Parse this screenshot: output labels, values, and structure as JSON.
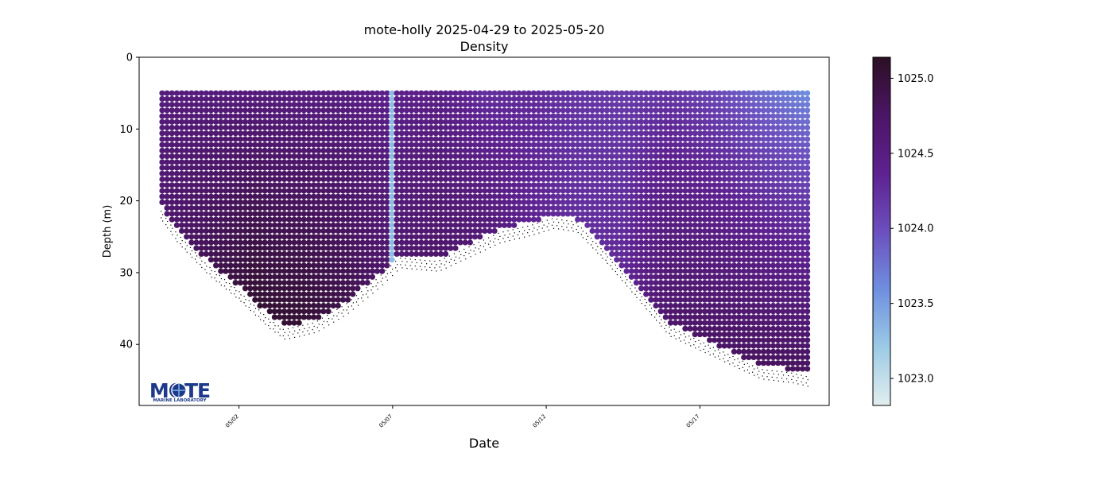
{
  "chart_data": {
    "type": "scatter",
    "title": "mote-holly 2025-04-29 to 2025-05-20",
    "subtitle": "Density",
    "xlabel": "Date",
    "ylabel": "Depth (m)",
    "x_ticks": [
      "05/02",
      "05/07",
      "05/12",
      "05/17"
    ],
    "x_tick_dates": [
      "2025-05-02",
      "2025-05-07",
      "2025-05-12",
      "2025-05-17"
    ],
    "xlim": [
      "2025-04-28T18:00",
      "2025-05-21T05:00"
    ],
    "y_ticks": [
      0,
      10,
      20,
      30,
      40
    ],
    "ylim": [
      48.5,
      0
    ],
    "y_inverted": true,
    "grid": false,
    "colorbar": {
      "ticks": [
        1023.0,
        1023.5,
        1024.0,
        1024.5,
        1025.0
      ],
      "tick_labels": [
        "1023.0",
        "1023.5",
        "1024.0",
        "1024.5",
        "1025.0"
      ],
      "range": [
        1022.82,
        1025.14
      ],
      "colors": [
        "#e2eeee",
        "#9ccbe6",
        "#6f8fdf",
        "#6c4fbe",
        "#5e2190",
        "#4b1565",
        "#2c0f24"
      ]
    },
    "surface_depth_m": 5,
    "bottom_profile": {
      "dates": [
        "2025-04-29T12:00",
        "2025-04-30T00:00",
        "2025-05-01T00:00",
        "2025-05-02T00:00",
        "2025-05-03T00:00",
        "2025-05-03T12:00",
        "2025-05-04T12:00",
        "2025-05-05T12:00",
        "2025-05-06T12:00",
        "2025-05-07T06:00",
        "2025-05-08T12:00",
        "2025-05-09T12:00",
        "2025-05-10T12:00",
        "2025-05-11T12:00",
        "2025-05-12T06:00",
        "2025-05-13T00:00",
        "2025-05-14T00:00",
        "2025-05-15T00:00",
        "2025-05-16T00:00",
        "2025-05-17T00:00",
        "2025-05-18T00:00",
        "2025-05-19T00:00",
        "2025-05-20T00:00",
        "2025-05-20T12:00"
      ],
      "depth_m": [
        21,
        24,
        28.5,
        32,
        36,
        37.5,
        36.5,
        34,
        30.5,
        27.5,
        28,
        26,
        24,
        23,
        22,
        22.5,
        27,
        32,
        37,
        39,
        41,
        43,
        43.5,
        44
      ]
    },
    "density_series": {
      "dates": [
        "2025-04-29T12:00",
        "2025-05-01T00:00",
        "2025-05-02T12:00",
        "2025-05-04T00:00",
        "2025-05-05T12:00",
        "2025-05-07T00:00",
        "2025-05-08T12:00",
        "2025-05-10T00:00",
        "2025-05-11T12:00",
        "2025-05-13T00:00",
        "2025-05-14T12:00",
        "2025-05-16T00:00",
        "2025-05-17T12:00",
        "2025-05-19T00:00",
        "2025-05-20T12:00"
      ],
      "surface_density": [
        1024.55,
        1024.55,
        1024.55,
        1024.5,
        1024.5,
        1024.4,
        1024.45,
        1024.25,
        1024.3,
        1024.2,
        1024.15,
        1024.2,
        1024.05,
        1023.8,
        1023.6
      ],
      "bottom_density": [
        1024.65,
        1024.85,
        1025.05,
        1025.05,
        1024.9,
        1024.65,
        1024.7,
        1024.6,
        1024.35,
        1024.25,
        1024.3,
        1024.7,
        1024.75,
        1024.8,
        1024.8
      ]
    },
    "annotations": [
      {
        "type": "low-density-column",
        "date": "2025-05-06T23:30",
        "density": 1023.3
      }
    ]
  },
  "logo": {
    "name": "MOTE",
    "tagline": "MARINE LABORATORY"
  }
}
